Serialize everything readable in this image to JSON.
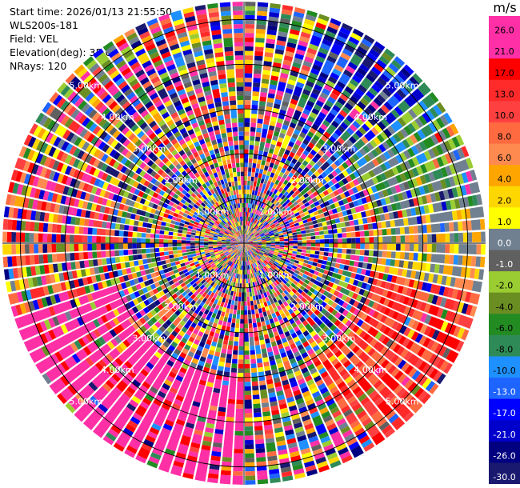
{
  "header": {
    "start_time": "Start time: 2026/01/13 21:55:50",
    "station": "WLS200s-181",
    "field": "Field: VEL",
    "elevation": "Elevation(deg): 35.00",
    "nrays": "NRays: 120"
  },
  "chart_data": {
    "type": "polar-ppi",
    "field": "VEL",
    "units": "m/s",
    "nrays": 120,
    "elevation_deg": 35.0,
    "max_range_km": 5.4,
    "range_ring_labels": [
      "1.00km",
      "2.00km",
      "3.00km",
      "4.00km",
      "5.00km"
    ],
    "colorbar": {
      "title": "m/s",
      "ticks": [
        "26.0",
        "21.0",
        "17.0",
        "13.0",
        "10.0",
        "8.0",
        "6.0",
        "4.0",
        "2.0",
        "1.0",
        "0.0",
        "-1.0",
        "-2.0",
        "-4.0",
        "-6.0",
        "-8.0",
        "-10.0",
        "-13.0",
        "-17.0",
        "-21.0",
        "-26.0",
        "-30.0"
      ],
      "colors": [
        "#ff2fa6",
        "#ff2fa6",
        "#ff0000",
        "#ff2a2a",
        "#ff4040",
        "#ff6a40",
        "#ff8a50",
        "#ffa500",
        "#ffd700",
        "#ffff00",
        "#708090",
        "#606060",
        "#9acd32",
        "#6b8e23",
        "#228b22",
        "#2e8b57",
        "#1e90ff",
        "#1e64ff",
        "#0000ff",
        "#0000cd",
        "#000080",
        "#191970"
      ]
    }
  }
}
